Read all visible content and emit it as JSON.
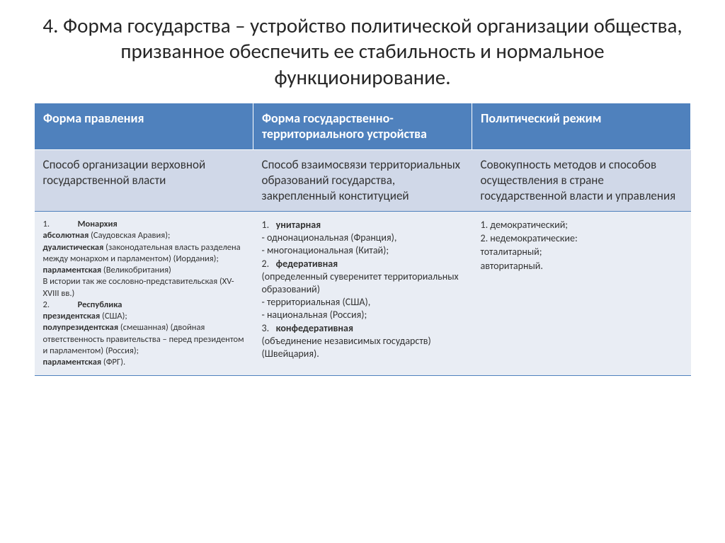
{
  "title": "4. Форма государства – устройство политической организации общества, призванное обеспечить ее стабильность и нормальное функционирование.",
  "headers": {
    "c1": "Форма правления",
    "c2": "Форма государственно-территориального устройства",
    "c3": "Политический режим"
  },
  "definitions": {
    "c1": "Способ организации верховной государственной власти",
    "c2": "Способ взаимосвязи территориальных образований государства, закрепленный конституцией",
    "c3": "Совокупность методов и способов осуществления в стране государственной власти и управления"
  },
  "examples": {
    "c1": {
      "n1": "1.",
      "t1": "Монархия",
      "l1a": "абсолютная",
      "l1at": " (Саудовская Аравия);",
      "l1b": "дуалистическая",
      "l1bt": " (законодательная власть разделена между монархом и парламентом) (Иордания);",
      "l1c": "парламентская",
      "l1ct": " (Великобритания)",
      "l1d": "В истории так же сословно-представительская (XV-XVIII вв.)",
      "n2": "2.",
      "t2": "Республика",
      "l2a": "президентская",
      "l2at": " (США);",
      "l2b": "полупрезидентская",
      "l2bt": " (смешанная) (двойная ответственность правительства – перед президентом и парламентом) (Россия);",
      "l2c": "парламентская",
      "l2ct": " (ФРГ)."
    },
    "c2": {
      "n1": "1.",
      "t1": "унитарная",
      "l1a": "- однонациональная (Франция),",
      "l1b": "- многонациональная (Китай);",
      "n2": "2.",
      "t2": "федеративная",
      "l2d": "(определенный суверенитет территориальных образований)",
      "l2a": "- территориальная (США),",
      "l2b": "- национальная (Россия);",
      "n3": "3.",
      "t3": "конфедеративная",
      "l3d": "(объединение независимых государств) (Швейцария)."
    },
    "c3": {
      "l1": "1.  демократический;",
      "l2": "2.  недемократические:",
      "l3": "тоталитарный;",
      "l4": "авторитарный."
    }
  },
  "colors": {
    "header_bg": "#4f81bd",
    "header_text": "#ffffff",
    "row1_bg": "#d0d8e8",
    "row2_bg": "#e9edf4",
    "border": "#4f81bd",
    "title": "#262626"
  }
}
